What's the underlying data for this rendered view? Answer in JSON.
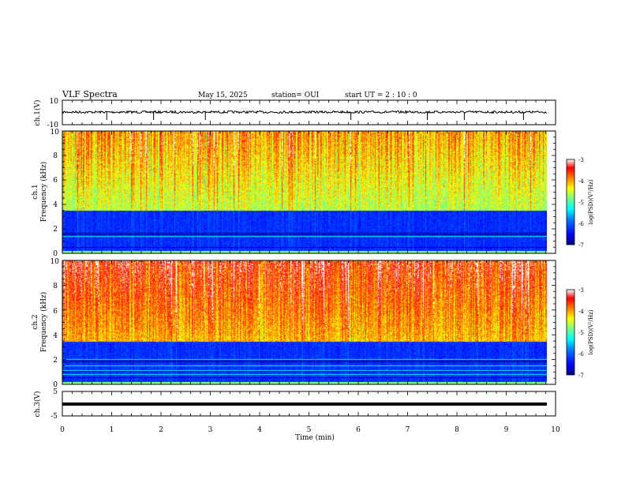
{
  "header": {
    "title": "VLF Spectra",
    "date": "May 15, 2025",
    "station": "station= OUI",
    "start": "start  UT  =   2 : 10 : 0"
  },
  "icons": {
    "spectrogram": "spectrogram-image",
    "colorbar": "gradient-bar"
  },
  "colors": {
    "scale": [
      "#00007f",
      "#0000ff",
      "#0080ff",
      "#00ffff",
      "#80ff80",
      "#ffff00",
      "#ff8000",
      "#ff0000",
      "#ffffff"
    ],
    "trace": "#000000"
  },
  "chart_data": [
    {
      "type": "line",
      "name": "ch1-waveform",
      "ylabel": "ch.1(V)",
      "ylim": [
        -10,
        10
      ],
      "ytick_labels": [
        "10",
        "-10"
      ],
      "x_range": [
        0,
        10
      ],
      "baseline": 0,
      "spikes_min": [
        0.9,
        1.85,
        2.9,
        5.85,
        7.4,
        8.15,
        9.35
      ]
    },
    {
      "type": "heatmap",
      "name": "ch1-spectrogram",
      "ylabel": "ch.1\nFrequency (kHz)",
      "ylim": [
        0,
        10
      ],
      "ytick_labels": [
        "0",
        "2",
        "4",
        "6",
        "8",
        "10"
      ],
      "xlim": [
        0,
        9.85
      ],
      "colorbar": {
        "label": "log(PSD)(V²/Hz)",
        "range": [
          -7,
          -3
        ],
        "tick_labels": [
          "-3",
          "-4",
          "-5",
          "-6",
          "-7"
        ]
      }
    },
    {
      "type": "heatmap",
      "name": "ch2-spectrogram",
      "ylabel": "ch.2\nFrequency (kHz)",
      "ylim": [
        0,
        10
      ],
      "ytick_labels": [
        "0",
        "2",
        "4",
        "6",
        "8",
        "10"
      ],
      "xlim": [
        0,
        9.85
      ],
      "colorbar": {
        "label": "log(PSD)(V²/Hz)",
        "range": [
          -7,
          -3
        ],
        "tick_labels": [
          "-3",
          "-4",
          "-5",
          "-6",
          "-7"
        ]
      }
    },
    {
      "type": "line",
      "name": "ch3-waveform",
      "ylabel": "ch.3(V)",
      "ylim": [
        -5,
        5
      ],
      "ytick_labels": [
        "5",
        "-5"
      ],
      "xlabel": "Time (min)",
      "xlim": [
        0,
        10
      ],
      "xtick_labels": [
        "0",
        "1",
        "2",
        "3",
        "4",
        "5",
        "6",
        "7",
        "8",
        "9",
        "10"
      ],
      "baseline": -1
    }
  ]
}
